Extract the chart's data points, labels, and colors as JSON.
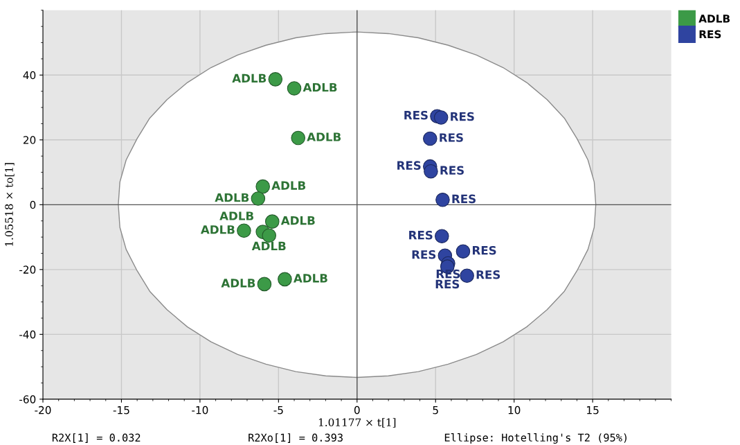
{
  "chart_data": {
    "type": "scatter",
    "xlabel": "1.01177 × t[1]",
    "ylabel": "1.05518 × to[1]",
    "xlim": [
      -20,
      20
    ],
    "ylim": [
      -60,
      60
    ],
    "xticks": [
      -20,
      -15,
      -10,
      -5,
      0,
      5,
      10,
      15
    ],
    "yticks": [
      -60,
      -40,
      -20,
      0,
      20,
      40
    ],
    "grid": true,
    "legend": "top right",
    "annotations": [
      "R2X[1] = 0.032",
      "R2Xo[1] = 0.393",
      "Ellipse: Hotelling's T2 (95%)"
    ],
    "series": [
      {
        "type": "area",
        "color": "#8a8a8a",
        "x": [
          15.2,
          15.1,
          14.7,
          14.0,
          13.2,
          12.1,
          10.8,
          9.3,
          7.6,
          5.8,
          3.9,
          2.0,
          0,
          -2.0,
          -3.9,
          -5.8,
          -7.6,
          -9.3,
          -10.8,
          -12.1,
          -13.2,
          -14.0,
          -14.7,
          -15.1,
          -15.2,
          -15.1,
          -14.7,
          -14.0,
          -13.2,
          -12.1,
          -10.8,
          -9.3,
          -7.6,
          -5.8,
          -3.9,
          -2.0,
          0,
          2.0,
          3.9,
          5.8,
          7.6,
          9.3,
          10.8,
          12.1,
          13.2,
          14.0,
          14.7,
          15.1
        ],
        "values": [
          0,
          7.0,
          13.8,
          20.4,
          26.7,
          32.4,
          37.7,
          42.3,
          46.2,
          49.2,
          51.5,
          52.8,
          53.3,
          52.8,
          51.5,
          49.2,
          46.2,
          42.3,
          37.7,
          32.4,
          26.7,
          20.4,
          13.8,
          7.0,
          0,
          -7.0,
          -13.8,
          -20.4,
          -26.7,
          -32.4,
          -37.7,
          -42.3,
          -46.2,
          -49.2,
          -51.5,
          -52.8,
          -53.3,
          -52.8,
          -51.5,
          -49.2,
          -46.2,
          -42.3,
          -37.7,
          -32.4,
          -26.7,
          -20.4,
          -13.8,
          -7.0
        ]
      },
      {
        "name": "ADLB",
        "marker": "circle",
        "color": "#3c9a47",
        "x": [
          -5.2,
          -4.0,
          -3.75,
          -6.0,
          -6.3,
          -5.4,
          -7.2,
          -6.0,
          -5.6,
          -4.6,
          -5.9
        ],
        "values": [
          38.7,
          35.9,
          20.6,
          5.6,
          1.9,
          -5.2,
          -8.0,
          -8.4,
          -9.5,
          -23.0,
          -24.5
        ],
        "value_labels": [
          "ADLB",
          "ADLB",
          "ADLB",
          "ADLB",
          "ADLB",
          "ADLB",
          "ADLB",
          "ADLB",
          "ADLB",
          "ADLB",
          "ADLB"
        ]
      },
      {
        "name": "RES",
        "marker": "circle",
        "color": "#2f44a0",
        "x": [
          5.1,
          5.35,
          4.65,
          4.65,
          4.7,
          5.45,
          5.4,
          6.75,
          5.6,
          5.8,
          5.75,
          7.0
        ],
        "values": [
          27.3,
          26.9,
          20.4,
          11.8,
          10.3,
          1.5,
          -9.7,
          -14.4,
          -15.7,
          -18.1,
          -19.1,
          -21.9
        ],
        "value_labels": [
          "RES",
          "RES",
          "RES",
          "RES",
          "RES",
          "RES",
          "RES",
          "RES",
          "RES",
          "RES",
          "RES",
          "RES"
        ]
      }
    ]
  }
}
